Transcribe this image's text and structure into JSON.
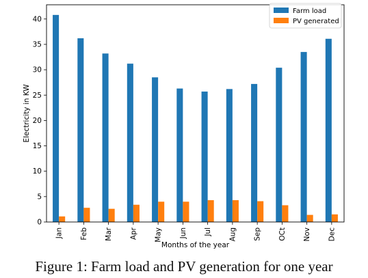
{
  "chart_data": {
    "type": "bar",
    "categories": [
      "Jan",
      "Feb",
      "Mar",
      "Apr",
      "May",
      "Jun",
      "Jul",
      "Aug",
      "Sep",
      "OCt",
      "Nov",
      "Dec"
    ],
    "series": [
      {
        "name": "Farm load",
        "values": [
          40.8,
          36.2,
          33.2,
          31.2,
          28.5,
          26.3,
          25.7,
          26.2,
          27.2,
          30.4,
          33.5,
          36.1
        ]
      },
      {
        "name": "PV generated",
        "values": [
          1.1,
          2.8,
          2.6,
          3.4,
          4.0,
          4.0,
          4.3,
          4.3,
          4.1,
          3.3,
          1.4,
          1.5
        ]
      }
    ],
    "xlabel": "Months of the year",
    "ylabel": "Electricity in KW",
    "ylim": [
      0,
      42.8
    ],
    "yticks": [
      0,
      5,
      10,
      15,
      20,
      25,
      30,
      35,
      40
    ],
    "grid": false,
    "legend_position": "top-right",
    "colors": [
      "#1f77b4",
      "#ff7f0e"
    ]
  },
  "caption": "Figure 1: Farm load and PV generation for one year"
}
